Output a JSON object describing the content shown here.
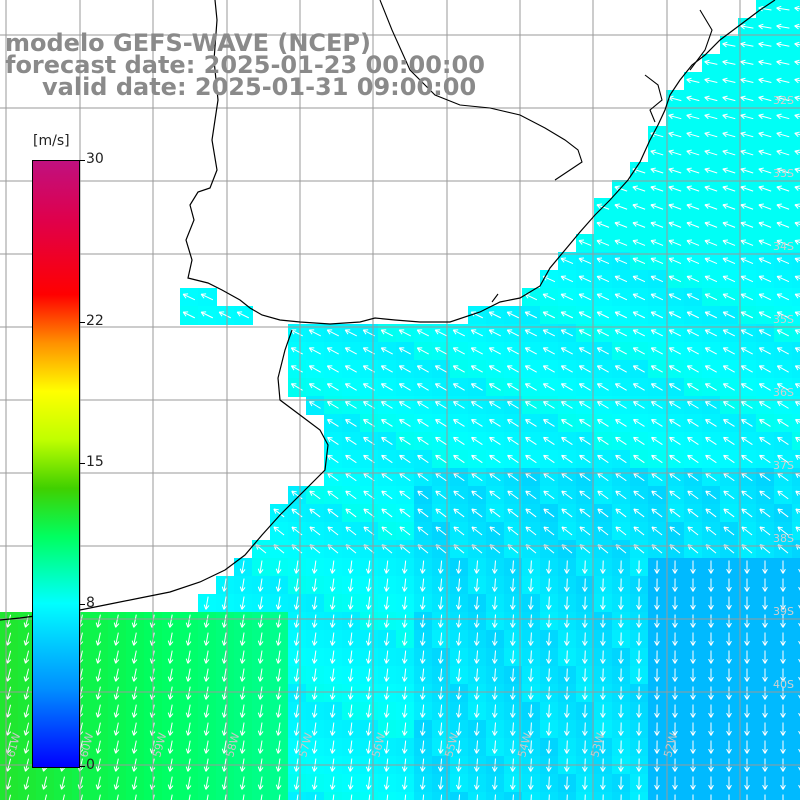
{
  "title": {
    "model": "modelo GEFS-WAVE (NCEP)",
    "forecast": "forecast date: 2025-01-23 00:00:00",
    "valid": "valid date: 2025-01-31 09:00:00"
  },
  "colorbar": {
    "unit": "[m/s]",
    "min": 0,
    "max": 30,
    "ticks": [
      {
        "value": 30,
        "label": "30"
      },
      {
        "value": 22,
        "label": "22"
      },
      {
        "value": 15,
        "label": "15"
      },
      {
        "value": 8,
        "label": "8"
      },
      {
        "value": 0,
        "label": "0"
      }
    ]
  },
  "grid": {
    "lat_labels": [
      "32S",
      "33S",
      "34S",
      "35S",
      "36S",
      "37S",
      "38S",
      "39S",
      "40S"
    ],
    "lon_labels": [
      "61W",
      "60W",
      "59W",
      "58W",
      "57W",
      "56W",
      "55W",
      "54W",
      "53W",
      "52W"
    ]
  },
  "colors": {
    "low": "#0000ff",
    "mid": "#00ffff",
    "high": "#c0107f",
    "title": "#8a8a8a",
    "grid": "#9a9a9a",
    "coast": "#000000",
    "arrow": "#ffffff"
  },
  "legend_position": "left"
}
